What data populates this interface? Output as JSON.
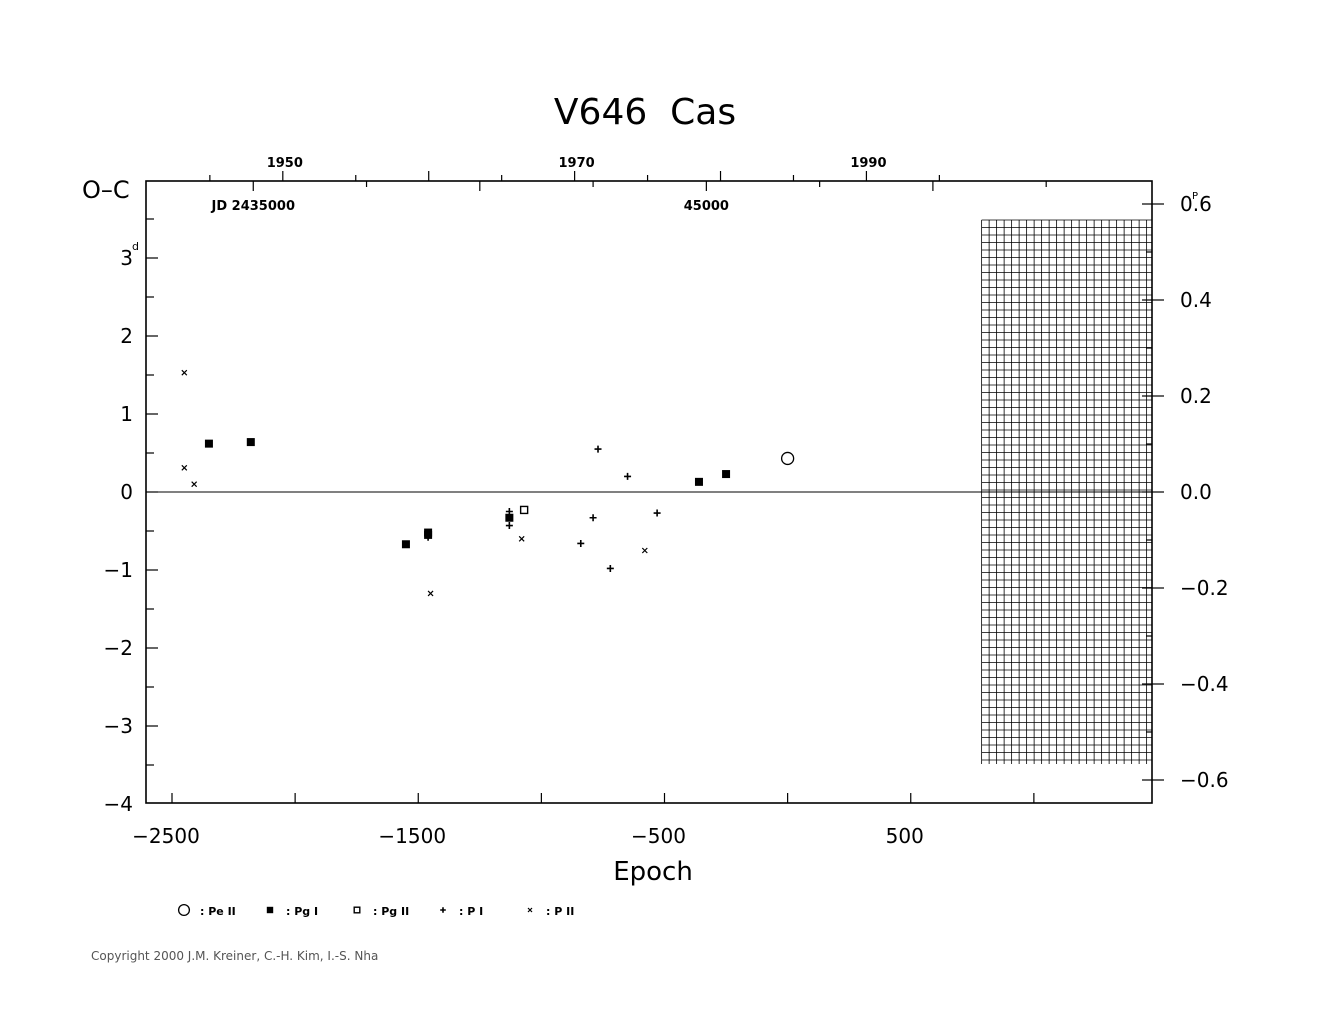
{
  "chart_data": {
    "type": "scatter",
    "title": "V646  Cas",
    "xlabel": "Epoch",
    "ylabel": "O–C",
    "y_unit": "d",
    "y2_unit": "P",
    "xlim": [
      -2600,
      1400
    ],
    "ylim": [
      -4,
      4
    ],
    "y2lim": [
      -0.65,
      0.65
    ],
    "x_ticks": [
      -2500,
      -1500,
      -500,
      500
    ],
    "x_tick_labels": [
      "−2500",
      "−1500",
      "−500",
      "500"
    ],
    "y_ticks": [
      -4,
      -3,
      -2,
      -1,
      0,
      1,
      2,
      3
    ],
    "y_tick_labels": [
      "−4",
      "−3",
      "−2",
      "−1",
      "0",
      "1",
      "2",
      "3"
    ],
    "y2_ticks": [
      -0.6,
      -0.4,
      -0.2,
      0.0,
      0.2,
      0.4,
      0.6
    ],
    "y2_tick_labels": [
      "−0.6",
      "−0.4",
      "−0.2",
      "0.0",
      "0.2",
      "0.4",
      "0.6"
    ],
    "top_axis": {
      "year_labels": [
        {
          "year": "1950",
          "epoch": -2050
        },
        {
          "year": "1970",
          "epoch": -865
        },
        {
          "year": "1990",
          "epoch": 320
        }
      ],
      "jd_labels": [
        {
          "text": "JD  2435000",
          "epoch": -2170
        },
        {
          "text": "45000",
          "epoch": -330
        }
      ]
    },
    "hatched_region": {
      "x_from": 800,
      "x_to": 1400,
      "y_from": -3.5,
      "y_to": 3.5
    },
    "legend": {
      "placement": "bottom",
      "items": [
        {
          "marker": "open-circle",
          "label": ": Pe II"
        },
        {
          "marker": "filled-square",
          "label": ": Pg I"
        },
        {
          "marker": "open-square",
          "label": ": Pg II"
        },
        {
          "marker": "plus",
          "label": ": P I"
        },
        {
          "marker": "cross",
          "label": ": P II"
        }
      ]
    },
    "series": [
      {
        "marker": "open-circle",
        "points": [
          [
            0,
            0.43
          ]
        ]
      },
      {
        "marker": "filled-square",
        "points": [
          [
            -2350,
            0.62
          ],
          [
            -2180,
            0.64
          ],
          [
            -1550,
            -0.67
          ],
          [
            -1460,
            -0.55
          ],
          [
            -1460,
            -0.52
          ],
          [
            -1130,
            -0.33
          ],
          [
            -360,
            0.13
          ],
          [
            -250,
            0.23
          ]
        ]
      },
      {
        "marker": "open-square",
        "points": [
          [
            -1070,
            -0.23
          ]
        ]
      },
      {
        "marker": "plus",
        "points": [
          [
            -1460,
            -0.58
          ],
          [
            -1130,
            -0.25
          ],
          [
            -1130,
            -0.43
          ],
          [
            -840,
            -0.66
          ],
          [
            -790,
            -0.33
          ],
          [
            -770,
            0.55
          ],
          [
            -720,
            -0.98
          ],
          [
            -650,
            0.2
          ],
          [
            -530,
            -0.27
          ]
        ]
      },
      {
        "marker": "cross",
        "points": [
          [
            -2450,
            1.53
          ],
          [
            -2450,
            0.31
          ],
          [
            -2410,
            0.1
          ],
          [
            -1450,
            -1.3
          ],
          [
            -1080,
            -0.6
          ],
          [
            -580,
            -0.75
          ]
        ]
      }
    ]
  },
  "copyright": "Copyright 2000 J.M. Kreiner, C.-H. Kim, I.-S. Nha"
}
